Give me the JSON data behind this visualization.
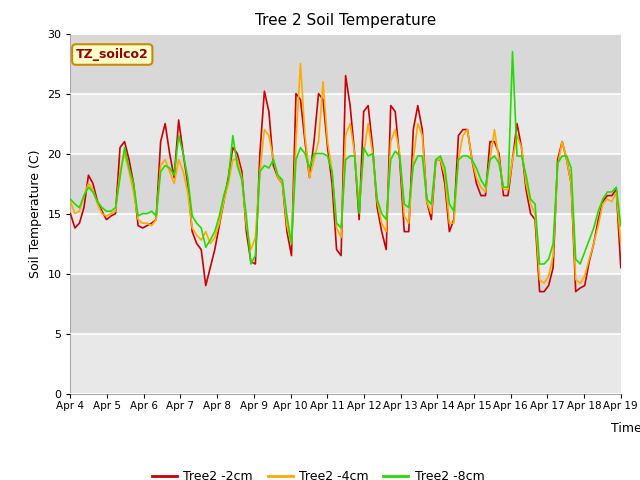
{
  "title": "Tree 2 Soil Temperature",
  "xlabel": "Time",
  "ylabel": "Soil Temperature (C)",
  "ylim": [
    0,
    30
  ],
  "yticks": [
    0,
    5,
    10,
    15,
    20,
    25,
    30
  ],
  "annotation": "TZ_soilco2",
  "legend_labels": [
    "Tree2 -2cm",
    "Tree2 -4cm",
    "Tree2 -8cm"
  ],
  "colors": {
    "red": "#cc0000",
    "orange": "#ffaa00",
    "green": "#22dd00",
    "bg_dark": "#e0e0e0",
    "bg_light": "#ececec",
    "annotation_bg": "#ffffcc",
    "annotation_border": "#cc8800",
    "annotation_text": "#990000"
  },
  "xtick_labels": [
    "Apr 4",
    "Apr 5",
    "Apr 6",
    "Apr 7",
    "Apr 8",
    "Apr 9",
    "Apr 10",
    "Apr 11",
    "Apr 12",
    "Apr 13",
    "Apr 14",
    "Apr 15",
    "Apr 16",
    "Apr 17",
    "Apr 18",
    "Apr 19"
  ],
  "red_data": [
    15.0,
    13.8,
    14.2,
    15.5,
    18.2,
    17.5,
    16.0,
    15.2,
    14.5,
    14.8,
    15.0,
    20.5,
    21.0,
    19.5,
    17.5,
    14.0,
    13.8,
    14.0,
    14.2,
    14.5,
    21.0,
    22.5,
    20.0,
    18.0,
    22.8,
    20.0,
    17.5,
    13.5,
    12.5,
    12.0,
    9.0,
    10.5,
    12.0,
    14.0,
    16.0,
    18.0,
    20.5,
    20.0,
    18.5,
    13.5,
    11.0,
    10.8,
    20.0,
    25.2,
    23.5,
    19.0,
    18.0,
    17.5,
    13.5,
    11.5,
    25.0,
    24.5,
    21.0,
    18.0,
    21.0,
    25.0,
    24.5,
    20.5,
    17.5,
    12.0,
    11.5,
    26.5,
    24.0,
    20.0,
    14.5,
    23.5,
    24.0,
    20.5,
    15.5,
    13.5,
    12.0,
    24.0,
    23.5,
    19.5,
    13.5,
    13.5,
    22.0,
    24.0,
    22.0,
    16.0,
    14.5,
    19.5,
    19.5,
    17.5,
    13.5,
    14.5,
    21.5,
    22.0,
    22.0,
    19.5,
    17.5,
    16.5,
    16.5,
    21.0,
    21.0,
    20.0,
    16.5,
    16.5,
    19.5,
    22.5,
    20.5,
    17.0,
    15.0,
    14.5,
    8.5,
    8.5,
    9.0,
    10.5,
    19.5,
    21.0,
    19.5,
    17.5,
    8.5,
    8.8,
    9.0,
    11.0,
    12.5,
    14.5,
    16.0,
    16.5,
    16.5,
    17.0,
    10.5
  ],
  "orange_data": [
    16.0,
    15.0,
    15.2,
    16.5,
    17.5,
    17.0,
    15.8,
    15.0,
    14.8,
    15.0,
    15.2,
    18.5,
    20.0,
    18.5,
    16.8,
    14.5,
    14.2,
    14.2,
    14.0,
    14.5,
    19.0,
    19.5,
    18.5,
    17.5,
    19.5,
    18.5,
    16.8,
    13.8,
    13.2,
    12.8,
    13.5,
    12.5,
    13.0,
    14.2,
    16.0,
    17.5,
    19.5,
    19.5,
    18.0,
    14.0,
    12.0,
    13.0,
    18.5,
    22.0,
    21.5,
    19.5,
    18.0,
    17.5,
    14.0,
    12.5,
    21.0,
    27.5,
    21.5,
    18.0,
    19.5,
    21.0,
    26.0,
    21.0,
    18.5,
    13.8,
    13.0,
    21.5,
    22.5,
    20.0,
    15.5,
    20.0,
    22.5,
    20.0,
    16.0,
    14.2,
    13.5,
    21.0,
    22.0,
    20.0,
    14.8,
    14.2,
    19.5,
    22.5,
    21.5,
    16.0,
    15.0,
    19.5,
    19.5,
    18.2,
    14.2,
    14.2,
    19.5,
    21.5,
    22.0,
    19.5,
    18.0,
    17.2,
    16.8,
    19.5,
    22.0,
    19.5,
    17.0,
    17.0,
    19.5,
    21.5,
    20.5,
    17.5,
    15.8,
    15.0,
    9.5,
    9.2,
    9.8,
    11.5,
    19.0,
    21.0,
    19.5,
    17.5,
    9.5,
    9.2,
    9.8,
    11.2,
    12.5,
    14.0,
    15.8,
    16.2,
    16.0,
    16.8,
    12.5
  ],
  "green_data": [
    16.2,
    15.8,
    15.5,
    16.5,
    17.2,
    16.8,
    16.0,
    15.5,
    15.2,
    15.2,
    15.5,
    18.0,
    20.5,
    18.8,
    17.5,
    14.8,
    15.0,
    15.0,
    15.2,
    14.8,
    18.5,
    19.0,
    18.8,
    18.2,
    21.5,
    20.0,
    18.0,
    14.8,
    14.2,
    13.8,
    12.2,
    12.8,
    13.5,
    14.8,
    16.5,
    17.8,
    21.5,
    19.0,
    17.8,
    14.8,
    10.8,
    11.5,
    18.5,
    19.0,
    18.8,
    19.5,
    18.2,
    17.8,
    14.8,
    12.5,
    19.5,
    20.5,
    20.0,
    18.8,
    20.0,
    20.0,
    20.0,
    19.8,
    18.5,
    14.2,
    13.8,
    19.5,
    19.8,
    19.8,
    15.0,
    20.5,
    19.8,
    20.0,
    16.2,
    15.0,
    14.5,
    19.5,
    20.2,
    19.8,
    15.8,
    15.5,
    19.0,
    19.8,
    19.8,
    16.2,
    15.8,
    19.5,
    19.8,
    18.8,
    15.8,
    15.2,
    19.5,
    19.8,
    19.8,
    19.5,
    18.8,
    17.8,
    17.2,
    19.5,
    19.8,
    19.2,
    17.2,
    17.2,
    28.5,
    19.8,
    19.8,
    18.2,
    16.2,
    15.8,
    10.8,
    10.8,
    11.2,
    12.5,
    19.2,
    19.8,
    19.8,
    18.8,
    11.2,
    10.8,
    11.8,
    12.8,
    13.8,
    15.2,
    16.2,
    16.8,
    16.8,
    17.2,
    14.0
  ]
}
